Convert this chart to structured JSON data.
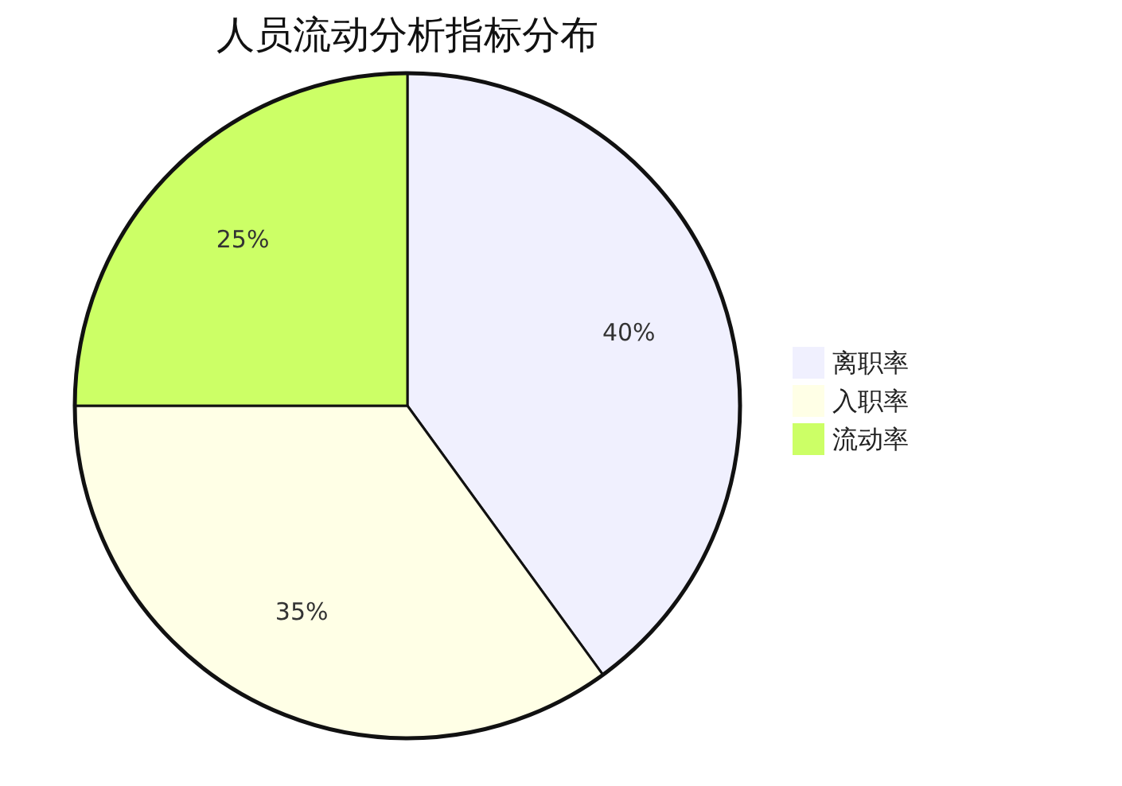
{
  "chart_data": {
    "type": "pie",
    "title": "人员流动分析指标分布",
    "categories": [
      "离职率",
      "入职率",
      "流动率"
    ],
    "values": [
      40,
      35,
      25
    ],
    "colors": [
      "#f0f0fe",
      "#ffffe6",
      "#ccff66"
    ],
    "value_labels": [
      "40%",
      "35%",
      "25%"
    ],
    "legend": "right"
  }
}
